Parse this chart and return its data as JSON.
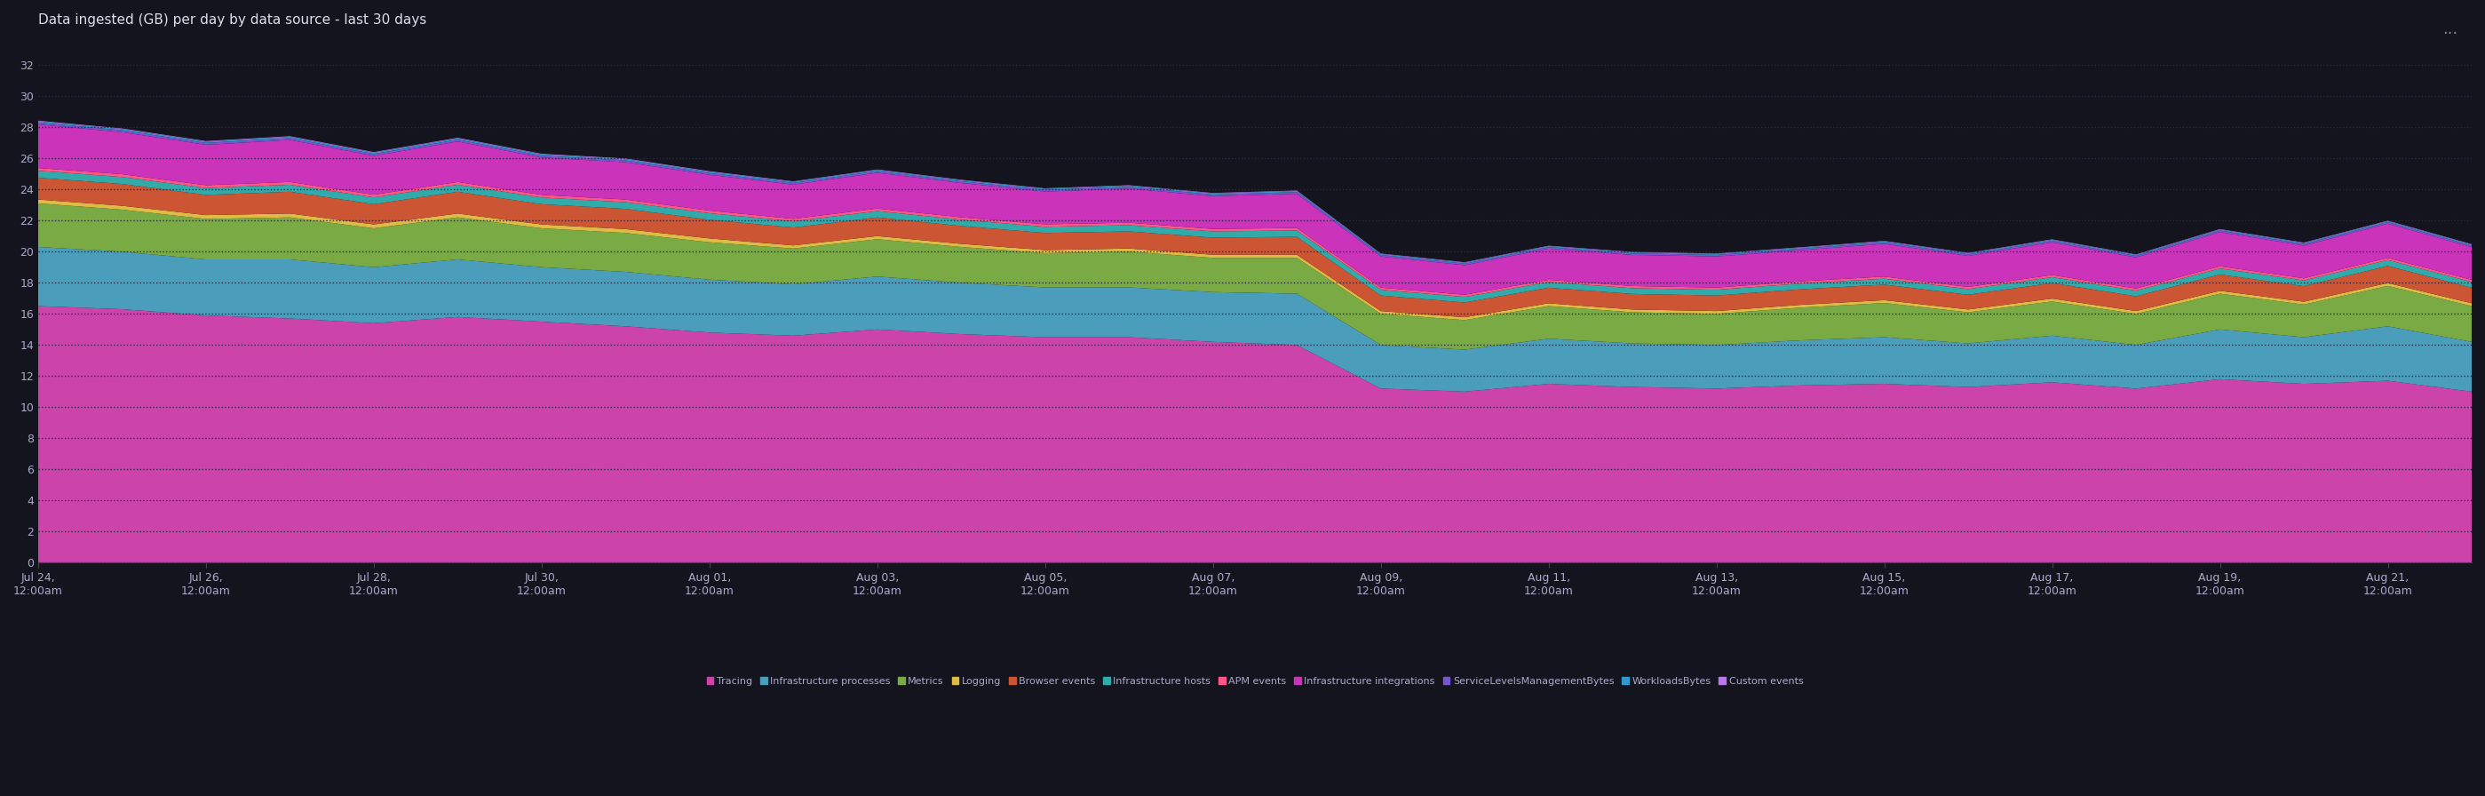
{
  "title": "Data ingested (GB) per day by data source - last 30 days",
  "bg_color": "#14141e",
  "yticks": [
    0,
    2,
    4,
    6,
    8,
    10,
    12,
    14,
    16,
    18,
    20,
    22,
    24,
    26,
    28,
    30,
    32
  ],
  "ylim": [
    0,
    34
  ],
  "x_labels": [
    "Jul 24,\n12:00am",
    "Jul 26,\n12:00am",
    "Jul 28,\n12:00am",
    "Jul 30,\n12:00am",
    "Aug 01,\n12:00am",
    "Aug 03,\n12:00am",
    "Aug 05,\n12:00am",
    "Aug 07,\n12:00am",
    "Aug 09,\n12:00am",
    "Aug 11,\n12:00am",
    "Aug 13,\n12:00am",
    "Aug 15,\n12:00am",
    "Aug 17,\n12:00am",
    "Aug 19,\n12:00am",
    "Aug 21,\n12:00am"
  ],
  "x_tick_positions": [
    0,
    2,
    4,
    6,
    8,
    10,
    12,
    14,
    16,
    18,
    20,
    22,
    24,
    26,
    28
  ],
  "series": [
    {
      "name": "Tracing",
      "color": "#cc44aa",
      "values": [
        16.5,
        16.3,
        15.9,
        15.7,
        15.4,
        15.8,
        15.5,
        15.2,
        14.8,
        14.6,
        15.0,
        14.7,
        14.5,
        14.5,
        14.2,
        14.0,
        11.2,
        11.0,
        11.5,
        11.3,
        11.2,
        11.4,
        11.5,
        11.3,
        11.6,
        11.2,
        11.8,
        11.5,
        11.7,
        11.0
      ]
    },
    {
      "name": "Infrastructure processes",
      "color": "#4a9ebb",
      "values": [
        3.8,
        3.7,
        3.6,
        3.8,
        3.6,
        3.7,
        3.5,
        3.5,
        3.4,
        3.3,
        3.4,
        3.3,
        3.2,
        3.2,
        3.2,
        3.3,
        2.8,
        2.7,
        2.9,
        2.8,
        2.8,
        2.9,
        3.0,
        2.8,
        3.0,
        2.8,
        3.2,
        3.0,
        3.5,
        3.2
      ]
    },
    {
      "name": "Metrics",
      "color": "#7aaa44",
      "values": [
        2.8,
        2.7,
        2.6,
        2.7,
        2.5,
        2.7,
        2.5,
        2.5,
        2.4,
        2.3,
        2.4,
        2.3,
        2.2,
        2.3,
        2.2,
        2.3,
        2.0,
        1.9,
        2.1,
        2.0,
        2.0,
        2.1,
        2.2,
        2.0,
        2.2,
        2.0,
        2.3,
        2.1,
        2.6,
        2.3
      ]
    },
    {
      "name": "Logging",
      "color": "#ddbb44",
      "values": [
        0.25,
        0.25,
        0.25,
        0.25,
        0.25,
        0.25,
        0.25,
        0.25,
        0.25,
        0.2,
        0.2,
        0.2,
        0.2,
        0.2,
        0.2,
        0.2,
        0.18,
        0.18,
        0.18,
        0.18,
        0.18,
        0.18,
        0.18,
        0.18,
        0.18,
        0.18,
        0.18,
        0.18,
        0.18,
        0.18
      ]
    },
    {
      "name": "Browser events",
      "color": "#cc5533",
      "values": [
        1.4,
        1.4,
        1.3,
        1.4,
        1.3,
        1.4,
        1.3,
        1.3,
        1.2,
        1.15,
        1.2,
        1.15,
        1.1,
        1.1,
        1.1,
        1.15,
        1.0,
        0.95,
        1.0,
        1.0,
        1.0,
        1.0,
        1.0,
        0.95,
        1.0,
        0.95,
        1.05,
        1.0,
        1.1,
        1.0
      ]
    },
    {
      "name": "Infrastructure hosts",
      "color": "#33aaaa",
      "values": [
        0.45,
        0.45,
        0.44,
        0.45,
        0.44,
        0.45,
        0.43,
        0.43,
        0.42,
        0.4,
        0.41,
        0.4,
        0.4,
        0.4,
        0.4,
        0.41,
        0.37,
        0.36,
        0.37,
        0.37,
        0.37,
        0.37,
        0.38,
        0.36,
        0.38,
        0.36,
        0.39,
        0.37,
        0.38,
        0.37
      ]
    },
    {
      "name": "APM events",
      "color": "#ff5588",
      "values": [
        0.18,
        0.18,
        0.18,
        0.18,
        0.17,
        0.18,
        0.17,
        0.17,
        0.17,
        0.16,
        0.16,
        0.16,
        0.16,
        0.16,
        0.16,
        0.16,
        0.14,
        0.14,
        0.14,
        0.14,
        0.14,
        0.14,
        0.14,
        0.14,
        0.14,
        0.14,
        0.14,
        0.14,
        0.14,
        0.14
      ]
    },
    {
      "name": "Infrastructure integrations",
      "color": "#cc33bb",
      "values": [
        2.8,
        2.7,
        2.6,
        2.7,
        2.5,
        2.6,
        2.4,
        2.4,
        2.3,
        2.2,
        2.3,
        2.2,
        2.1,
        2.2,
        2.1,
        2.2,
        2.0,
        1.9,
        2.0,
        2.0,
        2.0,
        2.0,
        2.1,
        2.0,
        2.1,
        2.0,
        2.2,
        2.1,
        2.2,
        2.1
      ]
    },
    {
      "name": "ServiceLevelsManagementBytes",
      "color": "#7755cc",
      "values": [
        0.12,
        0.12,
        0.12,
        0.12,
        0.12,
        0.12,
        0.12,
        0.12,
        0.11,
        0.11,
        0.11,
        0.11,
        0.11,
        0.11,
        0.11,
        0.11,
        0.1,
        0.1,
        0.1,
        0.1,
        0.1,
        0.1,
        0.1,
        0.1,
        0.1,
        0.1,
        0.1,
        0.1,
        0.1,
        0.1
      ]
    },
    {
      "name": "WorkloadsBytes",
      "color": "#3399cc",
      "values": [
        0.08,
        0.08,
        0.08,
        0.08,
        0.08,
        0.08,
        0.08,
        0.08,
        0.08,
        0.07,
        0.07,
        0.07,
        0.07,
        0.07,
        0.07,
        0.07,
        0.06,
        0.06,
        0.06,
        0.06,
        0.06,
        0.06,
        0.06,
        0.06,
        0.06,
        0.06,
        0.06,
        0.06,
        0.06,
        0.06
      ]
    },
    {
      "name": "Custom events",
      "color": "#bb77ee",
      "values": [
        0.04,
        0.04,
        0.04,
        0.04,
        0.04,
        0.04,
        0.04,
        0.04,
        0.04,
        0.03,
        0.03,
        0.03,
        0.03,
        0.03,
        0.03,
        0.03,
        0.03,
        0.03,
        0.03,
        0.03,
        0.03,
        0.03,
        0.03,
        0.03,
        0.03,
        0.03,
        0.03,
        0.03,
        0.03,
        0.03
      ]
    }
  ]
}
